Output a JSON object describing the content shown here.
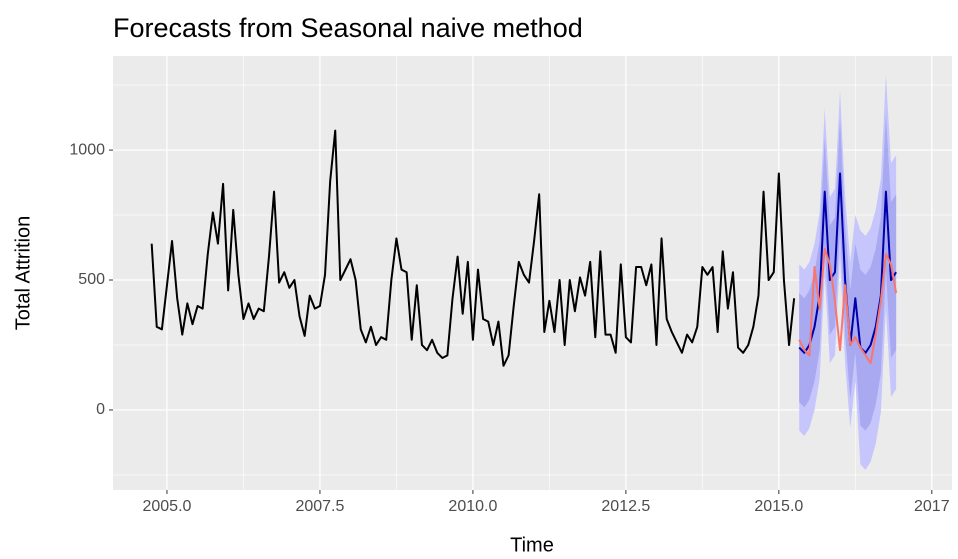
{
  "chart_data": {
    "type": "line",
    "title": "Forecasts from Seasonal naive method",
    "x_label": "Time",
    "y_label": "Total Attrition",
    "xlim": [
      2004.118,
      2017.83
    ],
    "ylim": [
      -308,
      1362
    ],
    "xticks": [
      {
        "value": 2005,
        "label": "2005.0"
      },
      2007.5,
      {
        "value": 2010,
        "label": "2010.0"
      },
      2012.5,
      {
        "value": 2015,
        "label": "2015.0"
      },
      {
        "value": 2017.5,
        "label": "2017"
      }
    ],
    "yticks": [
      0,
      500,
      1000
    ],
    "grid": true,
    "series": [
      {
        "color": "#000000",
        "x": [
          2004.75,
          2004.833,
          2004.917,
          2005,
          2005.083,
          2005.167,
          2005.25,
          2005.333,
          2005.417,
          2005.5,
          2005.583,
          2005.667,
          2005.75,
          2005.833,
          2005.917,
          2006,
          2006.083,
          2006.167,
          2006.25,
          2006.333,
          2006.417,
          2006.5,
          2006.583,
          2006.667,
          2006.75,
          2006.833,
          2006.917,
          2007,
          2007.083,
          2007.167,
          2007.25,
          2007.333,
          2007.417,
          2007.5,
          2007.583,
          2007.667,
          2007.75,
          2007.833,
          2007.917,
          2008,
          2008.083,
          2008.167,
          2008.25,
          2008.333,
          2008.417,
          2008.5,
          2008.583,
          2008.667,
          2008.75,
          2008.833,
          2008.917,
          2009,
          2009.083,
          2009.167,
          2009.25,
          2009.333,
          2009.417,
          2009.5,
          2009.583,
          2009.667,
          2009.75,
          2009.833,
          2009.917,
          2010,
          2010.083,
          2010.167,
          2010.25,
          2010.333,
          2010.417,
          2010.5,
          2010.583,
          2010.667,
          2010.75,
          2010.833,
          2010.917,
          2011,
          2011.083,
          2011.167,
          2011.25,
          2011.333,
          2011.417,
          2011.5,
          2011.583,
          2011.667,
          2011.75,
          2011.833,
          2011.917,
          2012,
          2012.083,
          2012.167,
          2012.25,
          2012.333,
          2012.417,
          2012.5,
          2012.583,
          2012.667,
          2012.75,
          2012.833,
          2012.917,
          2013,
          2013.083,
          2013.167,
          2013.25,
          2013.333,
          2013.417,
          2013.5,
          2013.583,
          2013.667,
          2013.75,
          2013.833,
          2013.917,
          2014,
          2014.083,
          2014.167,
          2014.25,
          2014.333,
          2014.417,
          2014.5,
          2014.583,
          2014.667,
          2014.75,
          2014.833,
          2014.917,
          2015,
          2015.083,
          2015.167,
          2015.25
        ],
        "values": [
          640,
          320,
          310,
          480,
          650,
          430,
          290,
          410,
          330,
          400,
          390,
          600,
          760,
          640,
          870,
          460,
          770,
          520,
          350,
          410,
          350,
          390,
          380,
          590,
          840,
          490,
          530,
          470,
          500,
          360,
          285,
          440,
          390,
          400,
          520,
          880,
          1075,
          500,
          540,
          580,
          500,
          310,
          260,
          320,
          250,
          280,
          270,
          500,
          660,
          540,
          530,
          270,
          480,
          250,
          230,
          270,
          220,
          200,
          210,
          430,
          590,
          370,
          570,
          270,
          540,
          350,
          340,
          250,
          340,
          170,
          210,
          400,
          570,
          520,
          490,
          650,
          830,
          300,
          420,
          300,
          500,
          250,
          500,
          380,
          510,
          440,
          570,
          280,
          610,
          290,
          290,
          220,
          560,
          280,
          260,
          550,
          550,
          480,
          560,
          250,
          660,
          350,
          300,
          260,
          220,
          290,
          260,
          320,
          550,
          520,
          550,
          300,
          610,
          390,
          530,
          240,
          220,
          250,
          320,
          440,
          840,
          500,
          530,
          910,
          500,
          250,
          430
        ]
      },
      {
        "color": "#0000aa",
        "band_colors": [
          "#c6c6fc",
          "#a8a9f0"
        ],
        "x": [
          2015.333,
          2015.417,
          2015.5,
          2015.583,
          2015.667,
          2015.75,
          2015.833,
          2015.917,
          2016,
          2016.083,
          2016.167,
          2016.25,
          2016.333,
          2016.417,
          2016.5,
          2016.583,
          2016.667,
          2016.75,
          2016.833,
          2016.917
        ],
        "values": [
          240,
          220,
          250,
          320,
          440,
          840,
          500,
          530,
          910,
          500,
          250,
          430,
          240,
          220,
          250,
          320,
          440,
          840,
          500,
          530
        ],
        "lower80": [
          30,
          10,
          40,
          110,
          230,
          630,
          290,
          320,
          700,
          290,
          40,
          220,
          -60,
          -80,
          -50,
          20,
          140,
          540,
          200,
          230
        ],
        "upper80": [
          450,
          430,
          460,
          530,
          650,
          1050,
          710,
          740,
          1120,
          710,
          460,
          640,
          540,
          520,
          550,
          620,
          740,
          1140,
          800,
          830
        ],
        "lower95": [
          -80,
          -100,
          -70,
          0,
          120,
          520,
          180,
          210,
          590,
          180,
          -70,
          110,
          -210,
          -230,
          -200,
          -130,
          -10,
          390,
          50,
          80
        ],
        "upper95": [
          560,
          540,
          570,
          640,
          760,
          1160,
          820,
          850,
          1230,
          820,
          570,
          750,
          690,
          670,
          700,
          770,
          890,
          1290,
          950,
          980
        ]
      },
      {
        "color": "#f8766d",
        "x": [
          2015.333,
          2015.417,
          2015.5,
          2015.583,
          2015.667,
          2015.75,
          2015.833,
          2015.917,
          2016,
          2016.083,
          2016.167,
          2016.25,
          2016.333,
          2016.417,
          2016.5,
          2016.583,
          2016.667,
          2016.75,
          2016.833,
          2016.917
        ],
        "values": [
          270,
          230,
          210,
          550,
          390,
          620,
          560,
          420,
          230,
          480,
          250,
          280,
          240,
          210,
          180,
          290,
          420,
          600,
          560,
          450
        ]
      }
    ]
  }
}
